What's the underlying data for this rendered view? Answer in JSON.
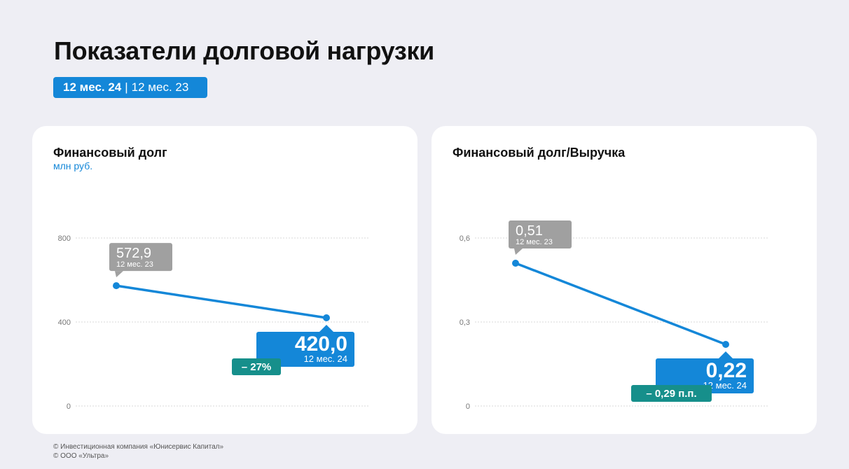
{
  "page": {
    "title": "Показатели долговой нагрузки",
    "period_active": "12 мес. 24",
    "period_separator": "|",
    "period_other": "12 мес. 23"
  },
  "colors": {
    "accent": "#1487d8",
    "previous": "#a0a0a0",
    "change": "#168f8b",
    "grid": "#d8d8d8",
    "tick": "#777777"
  },
  "chart_data": [
    {
      "type": "line",
      "title": "Финансовый долг",
      "unit": "млн руб.",
      "ylim": [
        0,
        800
      ],
      "yticks": [
        0,
        400,
        800
      ],
      "ytick_labels": [
        "0",
        "400",
        "800"
      ],
      "grid": true,
      "points": [
        {
          "period": "12 мес. 23",
          "value": 572.9,
          "label": "572,9"
        },
        {
          "period": "12 мес. 24",
          "value": 420.0,
          "label": "420,0"
        }
      ],
      "change_label": "– 27%"
    },
    {
      "type": "line",
      "title": "Финансовый долг/Выручка",
      "unit": "",
      "ylim": [
        0,
        0.6
      ],
      "yticks": [
        0,
        0.3,
        0.6
      ],
      "ytick_labels": [
        "0",
        "0,3",
        "0,6"
      ],
      "grid": true,
      "points": [
        {
          "period": "12 мес. 23",
          "value": 0.51,
          "label": "0,51"
        },
        {
          "period": "12 мес. 24",
          "value": 0.22,
          "label": "0,22"
        }
      ],
      "change_label": "– 0,29 п.п."
    }
  ],
  "footer": {
    "line1": "© Инвестиционная компания «Юнисервис Капитал»",
    "line2": "© ООО «Ультра»"
  }
}
